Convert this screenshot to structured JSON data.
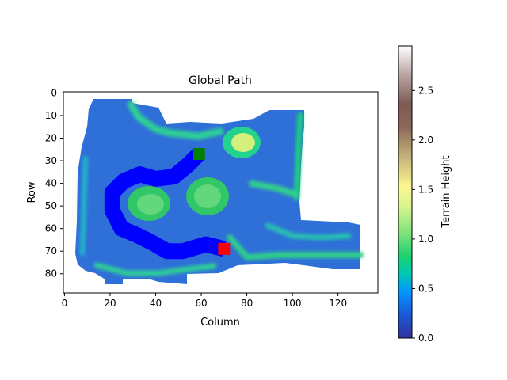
{
  "chart_data": {
    "type": "heatmap",
    "title": "Global Path",
    "xlabel": "Column",
    "ylabel": "Row",
    "xlim": [
      -0.5,
      137.5
    ],
    "ylim": [
      88.5,
      -0.5
    ],
    "x_ticks": [
      0,
      20,
      40,
      60,
      80,
      100,
      120
    ],
    "y_ticks": [
      0,
      10,
      20,
      30,
      40,
      50,
      60,
      70,
      80
    ],
    "colorbar": {
      "label": "Terrain Height",
      "min": 0.0,
      "max": 2.95,
      "ticks": [
        0.0,
        0.5,
        1.0,
        1.5,
        2.0,
        2.5
      ],
      "tick_labels": [
        "0.0",
        "0.5",
        "1.0",
        "1.5",
        "2.0",
        "2.5"
      ],
      "colormap": "terrain"
    },
    "path": {
      "color": "#0000ff",
      "points": [
        [
          59,
          27
        ],
        [
          54,
          32
        ],
        [
          48,
          37
        ],
        [
          40,
          38
        ],
        [
          33,
          36
        ],
        [
          26,
          39
        ],
        [
          21,
          44
        ],
        [
          21,
          52
        ],
        [
          25,
          60
        ],
        [
          32,
          63
        ],
        [
          38,
          66
        ],
        [
          45,
          70
        ],
        [
          52,
          70
        ],
        [
          62,
          67
        ],
        [
          70,
          69
        ]
      ]
    },
    "start": {
      "col": 59,
      "row": 27,
      "color": "#008000"
    },
    "goal": {
      "col": 70,
      "row": 69,
      "color": "#ff0000"
    },
    "terrain_features": [
      {
        "col": 80,
        "row": 22,
        "height": 1.4
      },
      {
        "col": 63,
        "row": 45,
        "height": 0.9
      },
      {
        "col": 37,
        "row": 50,
        "height": 0.9
      }
    ]
  }
}
